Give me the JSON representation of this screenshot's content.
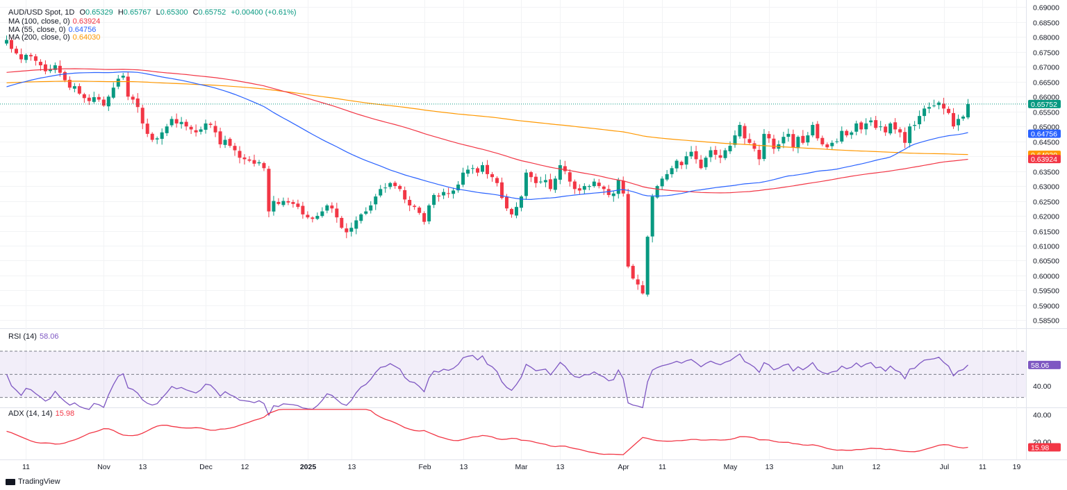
{
  "header": {
    "symbol": "AUD/USD Spot, 1D",
    "open_label": "O",
    "open": "0.65329",
    "high_label": "H",
    "high": "0.65767",
    "low_label": "L",
    "low": "0.65300",
    "close_label": "C",
    "close": "0.65752",
    "change": "+0.00400 (+0.61%)"
  },
  "ma_legend": [
    {
      "label": "MA (100, close, 0)",
      "value": "0.63924",
      "color": "#f23645"
    },
    {
      "label": "MA (55, close, 0)",
      "value": "0.64756",
      "color": "#2962ff"
    },
    {
      "label": "MA (200, close, 0)",
      "value": "0.64030",
      "color": "#ff9800"
    }
  ],
  "rsi_legend": {
    "label": "RSI (14)",
    "value": "58.06",
    "color": "#7e57c2"
  },
  "adx_legend": {
    "label": "ADX (14, 14)",
    "value": "15.98",
    "color": "#f23645"
  },
  "branding": "TradingView",
  "chart_data": [
    {
      "type": "candlestick",
      "name": "AUD/USD Spot, 1D",
      "y_ticks": [
        "0.69000",
        "0.68500",
        "0.68000",
        "0.67500",
        "0.67000",
        "0.66500",
        "0.66000",
        "0.65500",
        "0.65000",
        "0.64500",
        "0.64000",
        "0.63500",
        "0.63000",
        "0.62500",
        "0.62000",
        "0.61500",
        "0.61000",
        "0.60500",
        "0.60000",
        "0.59500",
        "0.59000",
        "0.58500"
      ],
      "ylim": [
        0.583,
        0.691
      ],
      "x_ticks": [
        {
          "label": "11",
          "i": 4
        },
        {
          "label": "Nov",
          "i": 20
        },
        {
          "label": "13",
          "i": 28
        },
        {
          "label": "Dec",
          "i": 41
        },
        {
          "label": "12",
          "i": 49
        },
        {
          "label": "2025",
          "i": 62
        },
        {
          "label": "13",
          "i": 71
        },
        {
          "label": "Feb",
          "i": 86
        },
        {
          "label": "13",
          "i": 94
        },
        {
          "label": "Mar",
          "i": 106
        },
        {
          "label": "13",
          "i": 114
        },
        {
          "label": "Apr",
          "i": 127
        },
        {
          "label": "11",
          "i": 135
        },
        {
          "label": "May",
          "i": 149
        },
        {
          "label": "13",
          "i": 157
        },
        {
          "label": "Jun",
          "i": 171
        },
        {
          "label": "12",
          "i": 179
        },
        {
          "label": "Jul",
          "i": 193
        },
        {
          "label": "11",
          "i": 201
        },
        {
          "label": "19",
          "i": 208
        }
      ],
      "closes": [
        0.679,
        0.676,
        0.6745,
        0.6725,
        0.674,
        0.6735,
        0.672,
        0.6705,
        0.6685,
        0.669,
        0.6705,
        0.668,
        0.6655,
        0.663,
        0.6635,
        0.661,
        0.6595,
        0.6585,
        0.6598,
        0.659,
        0.657,
        0.66,
        0.663,
        0.666,
        0.667,
        0.66,
        0.659,
        0.6565,
        0.651,
        0.6475,
        0.6455,
        0.646,
        0.648,
        0.65,
        0.6525,
        0.651,
        0.6515,
        0.65,
        0.649,
        0.648,
        0.649,
        0.651,
        0.6505,
        0.648,
        0.644,
        0.6455,
        0.6435,
        0.642,
        0.6395,
        0.639,
        0.6385,
        0.6375,
        0.638,
        0.636,
        0.6215,
        0.625,
        0.624,
        0.625,
        0.6245,
        0.624,
        0.623,
        0.6205,
        0.6195,
        0.619,
        0.62,
        0.6215,
        0.6235,
        0.6225,
        0.6195,
        0.616,
        0.6145,
        0.616,
        0.6185,
        0.6205,
        0.6215,
        0.6235,
        0.6265,
        0.629,
        0.6295,
        0.631,
        0.63,
        0.629,
        0.6255,
        0.6235,
        0.623,
        0.621,
        0.618,
        0.6235,
        0.627,
        0.6265,
        0.628,
        0.6275,
        0.6285,
        0.6305,
        0.6345,
        0.6355,
        0.636,
        0.6345,
        0.637,
        0.634,
        0.633,
        0.631,
        0.626,
        0.6225,
        0.6205,
        0.623,
        0.6265,
        0.6345,
        0.633,
        0.631,
        0.6315,
        0.632,
        0.629,
        0.6325,
        0.637,
        0.635,
        0.6315,
        0.629,
        0.6285,
        0.63,
        0.63,
        0.6315,
        0.63,
        0.629,
        0.627,
        0.6275,
        0.632,
        0.6275,
        0.603,
        0.599,
        0.597,
        0.594,
        0.613,
        0.6265,
        0.63,
        0.6325,
        0.634,
        0.636,
        0.6385,
        0.637,
        0.64,
        0.6415,
        0.639,
        0.636,
        0.6395,
        0.642,
        0.6405,
        0.6395,
        0.642,
        0.6435,
        0.647,
        0.6505,
        0.646,
        0.6445,
        0.6425,
        0.639,
        0.6475,
        0.646,
        0.6425,
        0.644,
        0.6465,
        0.6475,
        0.643,
        0.6465,
        0.6445,
        0.647,
        0.6505,
        0.646,
        0.644,
        0.643,
        0.6445,
        0.645,
        0.6485,
        0.647,
        0.648,
        0.651,
        0.649,
        0.651,
        0.652,
        0.6495,
        0.65,
        0.648,
        0.651,
        0.649,
        0.648,
        0.6445,
        0.65,
        0.6505,
        0.6535,
        0.656,
        0.6565,
        0.657,
        0.658,
        0.656,
        0.6545,
        0.65,
        0.6525,
        0.6533,
        0.6575
      ]
    },
    {
      "type": "line",
      "name": "RSI (14)",
      "y_ticks": [
        "40.00"
      ],
      "ylim": [
        22,
        88
      ],
      "guide_levels": [
        70,
        50,
        30
      ],
      "last": 58.06
    },
    {
      "type": "line",
      "name": "ADX (14, 14)",
      "y_ticks": [
        "40.00",
        "20.00"
      ],
      "ylim": [
        8,
        45
      ],
      "last": 15.98
    }
  ]
}
